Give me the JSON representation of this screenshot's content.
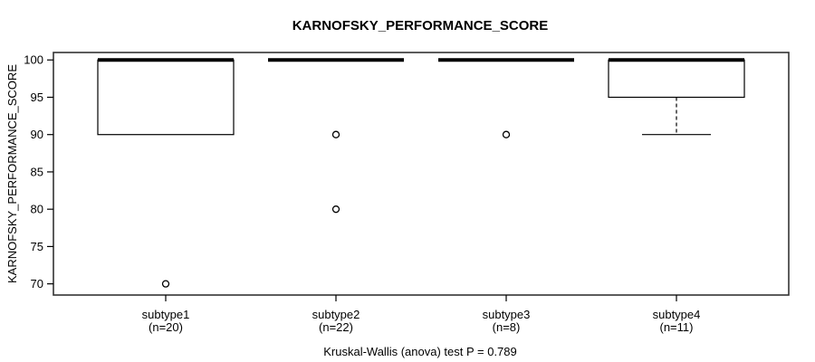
{
  "chart_data": {
    "type": "boxplot",
    "title": "KARNOFSKY_PERFORMANCE_SCORE",
    "ylabel": "KARNOFSKY_PERFORMANCE_SCORE",
    "caption": "Kruskal-Wallis (anova) test P = 0.789",
    "test": {
      "name": "Kruskal-Wallis (anova) test",
      "p_value": 0.789
    },
    "ylim": [
      68.5,
      101
    ],
    "yticks": [
      70,
      75,
      80,
      85,
      90,
      95,
      100
    ],
    "grid": false,
    "legend": null,
    "groups": [
      {
        "label": "subtype1",
        "sublabel": "(n=20)",
        "n": 20,
        "q1": 90,
        "median": 100,
        "q3": 100,
        "whisker_low": 90,
        "whisker_high": 100,
        "outliers": [
          70
        ]
      },
      {
        "label": "subtype2",
        "sublabel": "(n=22)",
        "n": 22,
        "q1": 100,
        "median": 100,
        "q3": 100,
        "whisker_low": 100,
        "whisker_high": 100,
        "outliers": [
          90,
          80
        ]
      },
      {
        "label": "subtype3",
        "sublabel": "(n=8)",
        "n": 8,
        "q1": 100,
        "median": 100,
        "q3": 100,
        "whisker_low": 100,
        "whisker_high": 100,
        "outliers": [
          90
        ]
      },
      {
        "label": "subtype4",
        "sublabel": "(n=11)",
        "n": 11,
        "q1": 95,
        "median": 100,
        "q3": 100,
        "whisker_low": 90,
        "whisker_high": 100,
        "outliers": []
      }
    ],
    "colors": {
      "line": "#000000",
      "box_fill": "#ffffff",
      "background": "#ffffff"
    }
  }
}
